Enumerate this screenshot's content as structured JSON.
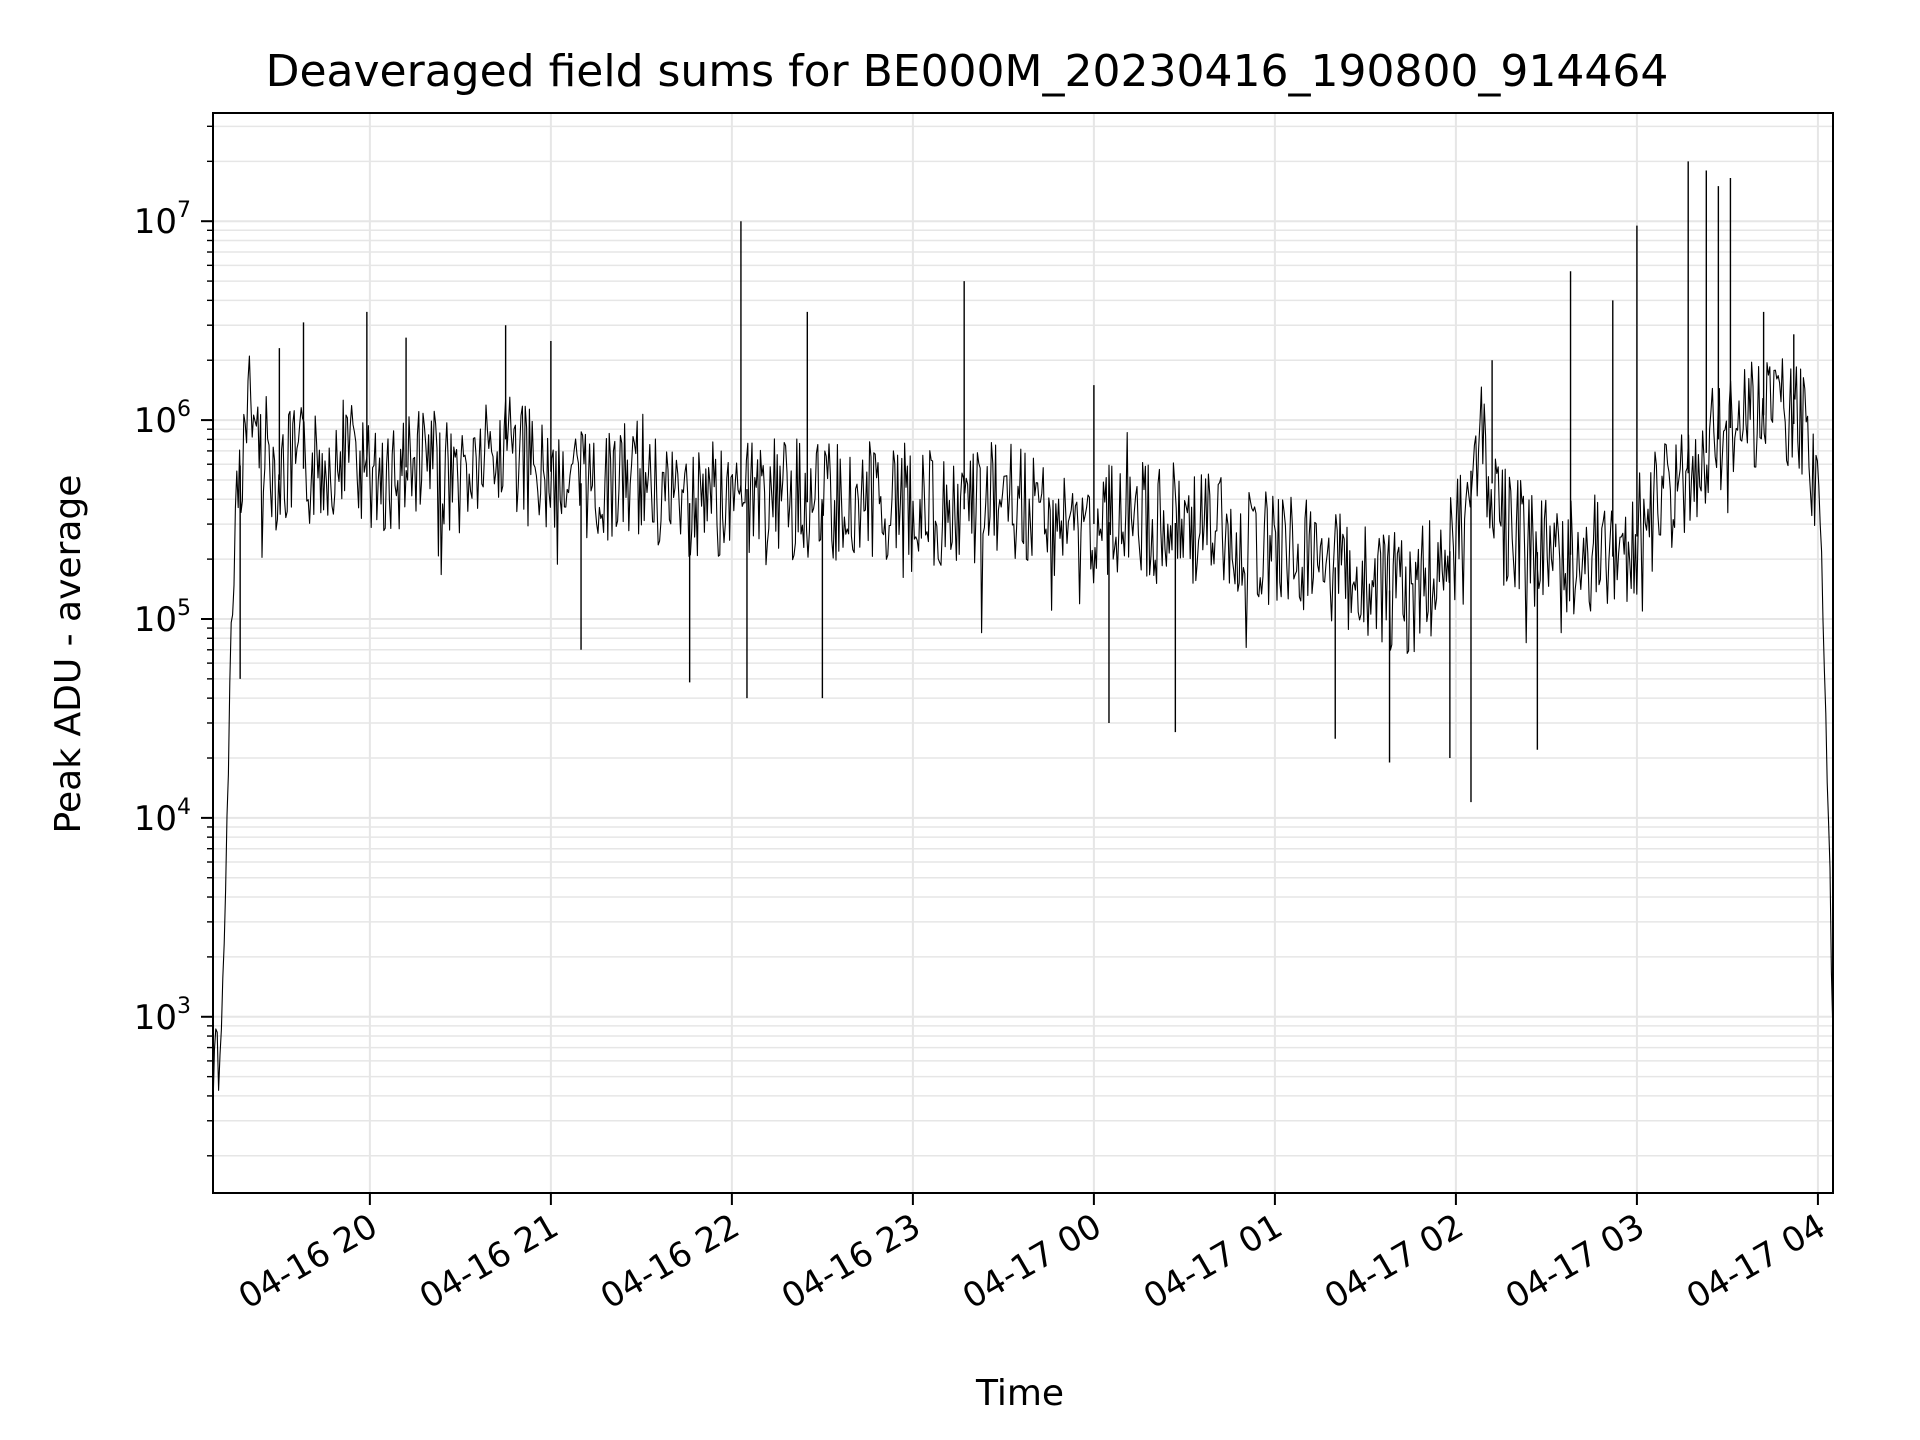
{
  "chart_data": {
    "type": "line",
    "title": "Deaveraged field sums for BE000M_20230416_190800_914464",
    "xlabel": "Time",
    "ylabel": "Peak ADU - average",
    "yscale": "log",
    "ylim": [
      130,
      35000000
    ],
    "xlim": [
      "2023-04-16 19:08",
      "2023-04-17 04:05"
    ],
    "grid": "major-and-minor",
    "line_color": "#000000",
    "grid_color": "#e6e6e6",
    "x_ticks": [
      {
        "t": "2023-04-16 20:00",
        "label": "04-16 20"
      },
      {
        "t": "2023-04-16 21:00",
        "label": "04-16 21"
      },
      {
        "t": "2023-04-16 22:00",
        "label": "04-16 22"
      },
      {
        "t": "2023-04-16 23:00",
        "label": "04-16 23"
      },
      {
        "t": "2023-04-17 00:00",
        "label": "04-17 00"
      },
      {
        "t": "2023-04-17 01:00",
        "label": "04-17 01"
      },
      {
        "t": "2023-04-17 02:00",
        "label": "04-17 02"
      },
      {
        "t": "2023-04-17 03:00",
        "label": "04-17 03"
      },
      {
        "t": "2023-04-17 04:00",
        "label": "04-17 04"
      }
    ],
    "y_ticks": [
      {
        "value": 1000,
        "base": "10",
        "exp": "3"
      },
      {
        "value": 10000,
        "base": "10",
        "exp": "4"
      },
      {
        "value": 100000,
        "base": "10",
        "exp": "5"
      },
      {
        "value": 1000000,
        "base": "10",
        "exp": "6"
      },
      {
        "value": 10000000,
        "base": "10",
        "exp": "7"
      }
    ],
    "series": [
      {
        "x": [
          "2023-04-16 19:08",
          "2023-04-16 19:09",
          "2023-04-16 19:10",
          "2023-04-16 19:11",
          "2023-04-16 19:12",
          "2023-04-16 19:13",
          "2023-04-16 19:14",
          "2023-04-16 19:15",
          "2023-04-16 19:16",
          "2023-04-16 19:18",
          "2023-04-16 19:20",
          "2023-04-16 19:22",
          "2023-04-16 19:25",
          "2023-04-16 19:28",
          "2023-04-16 19:30",
          "2023-04-16 19:35",
          "2023-04-16 19:40",
          "2023-04-16 19:50",
          "2023-04-16 19:55",
          "2023-04-16 20:00",
          "2023-04-16 20:15",
          "2023-04-16 20:30",
          "2023-04-16 20:45",
          "2023-04-16 20:50",
          "2023-04-16 21:00",
          "2023-04-16 21:15",
          "2023-04-16 21:30",
          "2023-04-16 21:45",
          "2023-04-16 22:00",
          "2023-04-16 22:05",
          "2023-04-16 22:15",
          "2023-04-16 22:30",
          "2023-04-16 22:45",
          "2023-04-16 23:00",
          "2023-04-16 23:15",
          "2023-04-16 23:30",
          "2023-04-16 23:45",
          "2023-04-17 00:00",
          "2023-04-17 00:15",
          "2023-04-17 00:30",
          "2023-04-17 00:45",
          "2023-04-17 01:00",
          "2023-04-17 01:15",
          "2023-04-17 01:30",
          "2023-04-17 01:45",
          "2023-04-17 01:55",
          "2023-04-17 02:00",
          "2023-04-17 02:08",
          "2023-04-17 02:15",
          "2023-04-17 02:30",
          "2023-04-17 02:45",
          "2023-04-17 02:55",
          "2023-04-17 03:00",
          "2023-04-17 03:15",
          "2023-04-17 03:30",
          "2023-04-17 03:45",
          "2023-04-17 03:55",
          "2023-04-17 04:00",
          "2023-04-17 04:02",
          "2023-04-17 04:04",
          "2023-04-17 04:05"
        ],
        "y": [
          350,
          900,
          400,
          1200,
          3500,
          14000,
          90000,
          150000,
          500000,
          700000,
          1200000,
          900000,
          700000,
          600000,
          500000,
          600000,
          550000,
          700000,
          600000,
          500000,
          600000,
          500000,
          800000,
          600000,
          550000,
          450000,
          500000,
          380000,
          420000,
          450000,
          400000,
          380000,
          400000,
          380000,
          350000,
          400000,
          330000,
          300000,
          320000,
          300000,
          260000,
          230000,
          200000,
          150000,
          130000,
          180000,
          250000,
          900000,
          300000,
          200000,
          220000,
          200000,
          260000,
          500000,
          900000,
          1100000,
          900000,
          500000,
          80000,
          5000,
          850
        ]
      }
    ],
    "spikes": [
      {
        "t": "2023-04-16 19:30",
        "y": 2300000
      },
      {
        "t": "2023-04-16 19:38",
        "y": 3100000
      },
      {
        "t": "2023-04-16 19:59",
        "y": 3500000
      },
      {
        "t": "2023-04-16 20:12",
        "y": 2600000
      },
      {
        "t": "2023-04-16 20:45",
        "y": 3000000
      },
      {
        "t": "2023-04-16 21:00",
        "y": 2500000
      },
      {
        "t": "2023-04-16 22:03",
        "y": 10000000
      },
      {
        "t": "2023-04-16 22:25",
        "y": 3500000
      },
      {
        "t": "2023-04-16 23:17",
        "y": 5000000
      },
      {
        "t": "2023-04-17 00:00",
        "y": 1500000
      },
      {
        "t": "2023-04-17 02:12",
        "y": 2000000
      },
      {
        "t": "2023-04-17 02:38",
        "y": 5600000
      },
      {
        "t": "2023-04-17 02:52",
        "y": 4000000
      },
      {
        "t": "2023-04-17 03:00",
        "y": 9500000
      },
      {
        "t": "2023-04-17 03:17",
        "y": 20000000
      },
      {
        "t": "2023-04-17 03:23",
        "y": 18000000
      },
      {
        "t": "2023-04-17 03:27",
        "y": 15000000
      },
      {
        "t": "2023-04-17 03:31",
        "y": 16500000
      },
      {
        "t": "2023-04-17 03:42",
        "y": 3500000
      },
      {
        "t": "2023-04-17 03:52",
        "y": 2700000
      }
    ],
    "dips": [
      {
        "t": "2023-04-16 19:17",
        "y": 50000
      },
      {
        "t": "2023-04-16 21:10",
        "y": 70000
      },
      {
        "t": "2023-04-16 21:46",
        "y": 48000
      },
      {
        "t": "2023-04-16 22:05",
        "y": 40000
      },
      {
        "t": "2023-04-16 22:30",
        "y": 40000
      },
      {
        "t": "2023-04-17 00:05",
        "y": 30000
      },
      {
        "t": "2023-04-17 00:27",
        "y": 27000
      },
      {
        "t": "2023-04-17 01:20",
        "y": 25000
      },
      {
        "t": "2023-04-17 01:38",
        "y": 19000
      },
      {
        "t": "2023-04-17 01:58",
        "y": 20000
      },
      {
        "t": "2023-04-17 02:05",
        "y": 12000
      },
      {
        "t": "2023-04-17 02:27",
        "y": 22000
      }
    ]
  }
}
